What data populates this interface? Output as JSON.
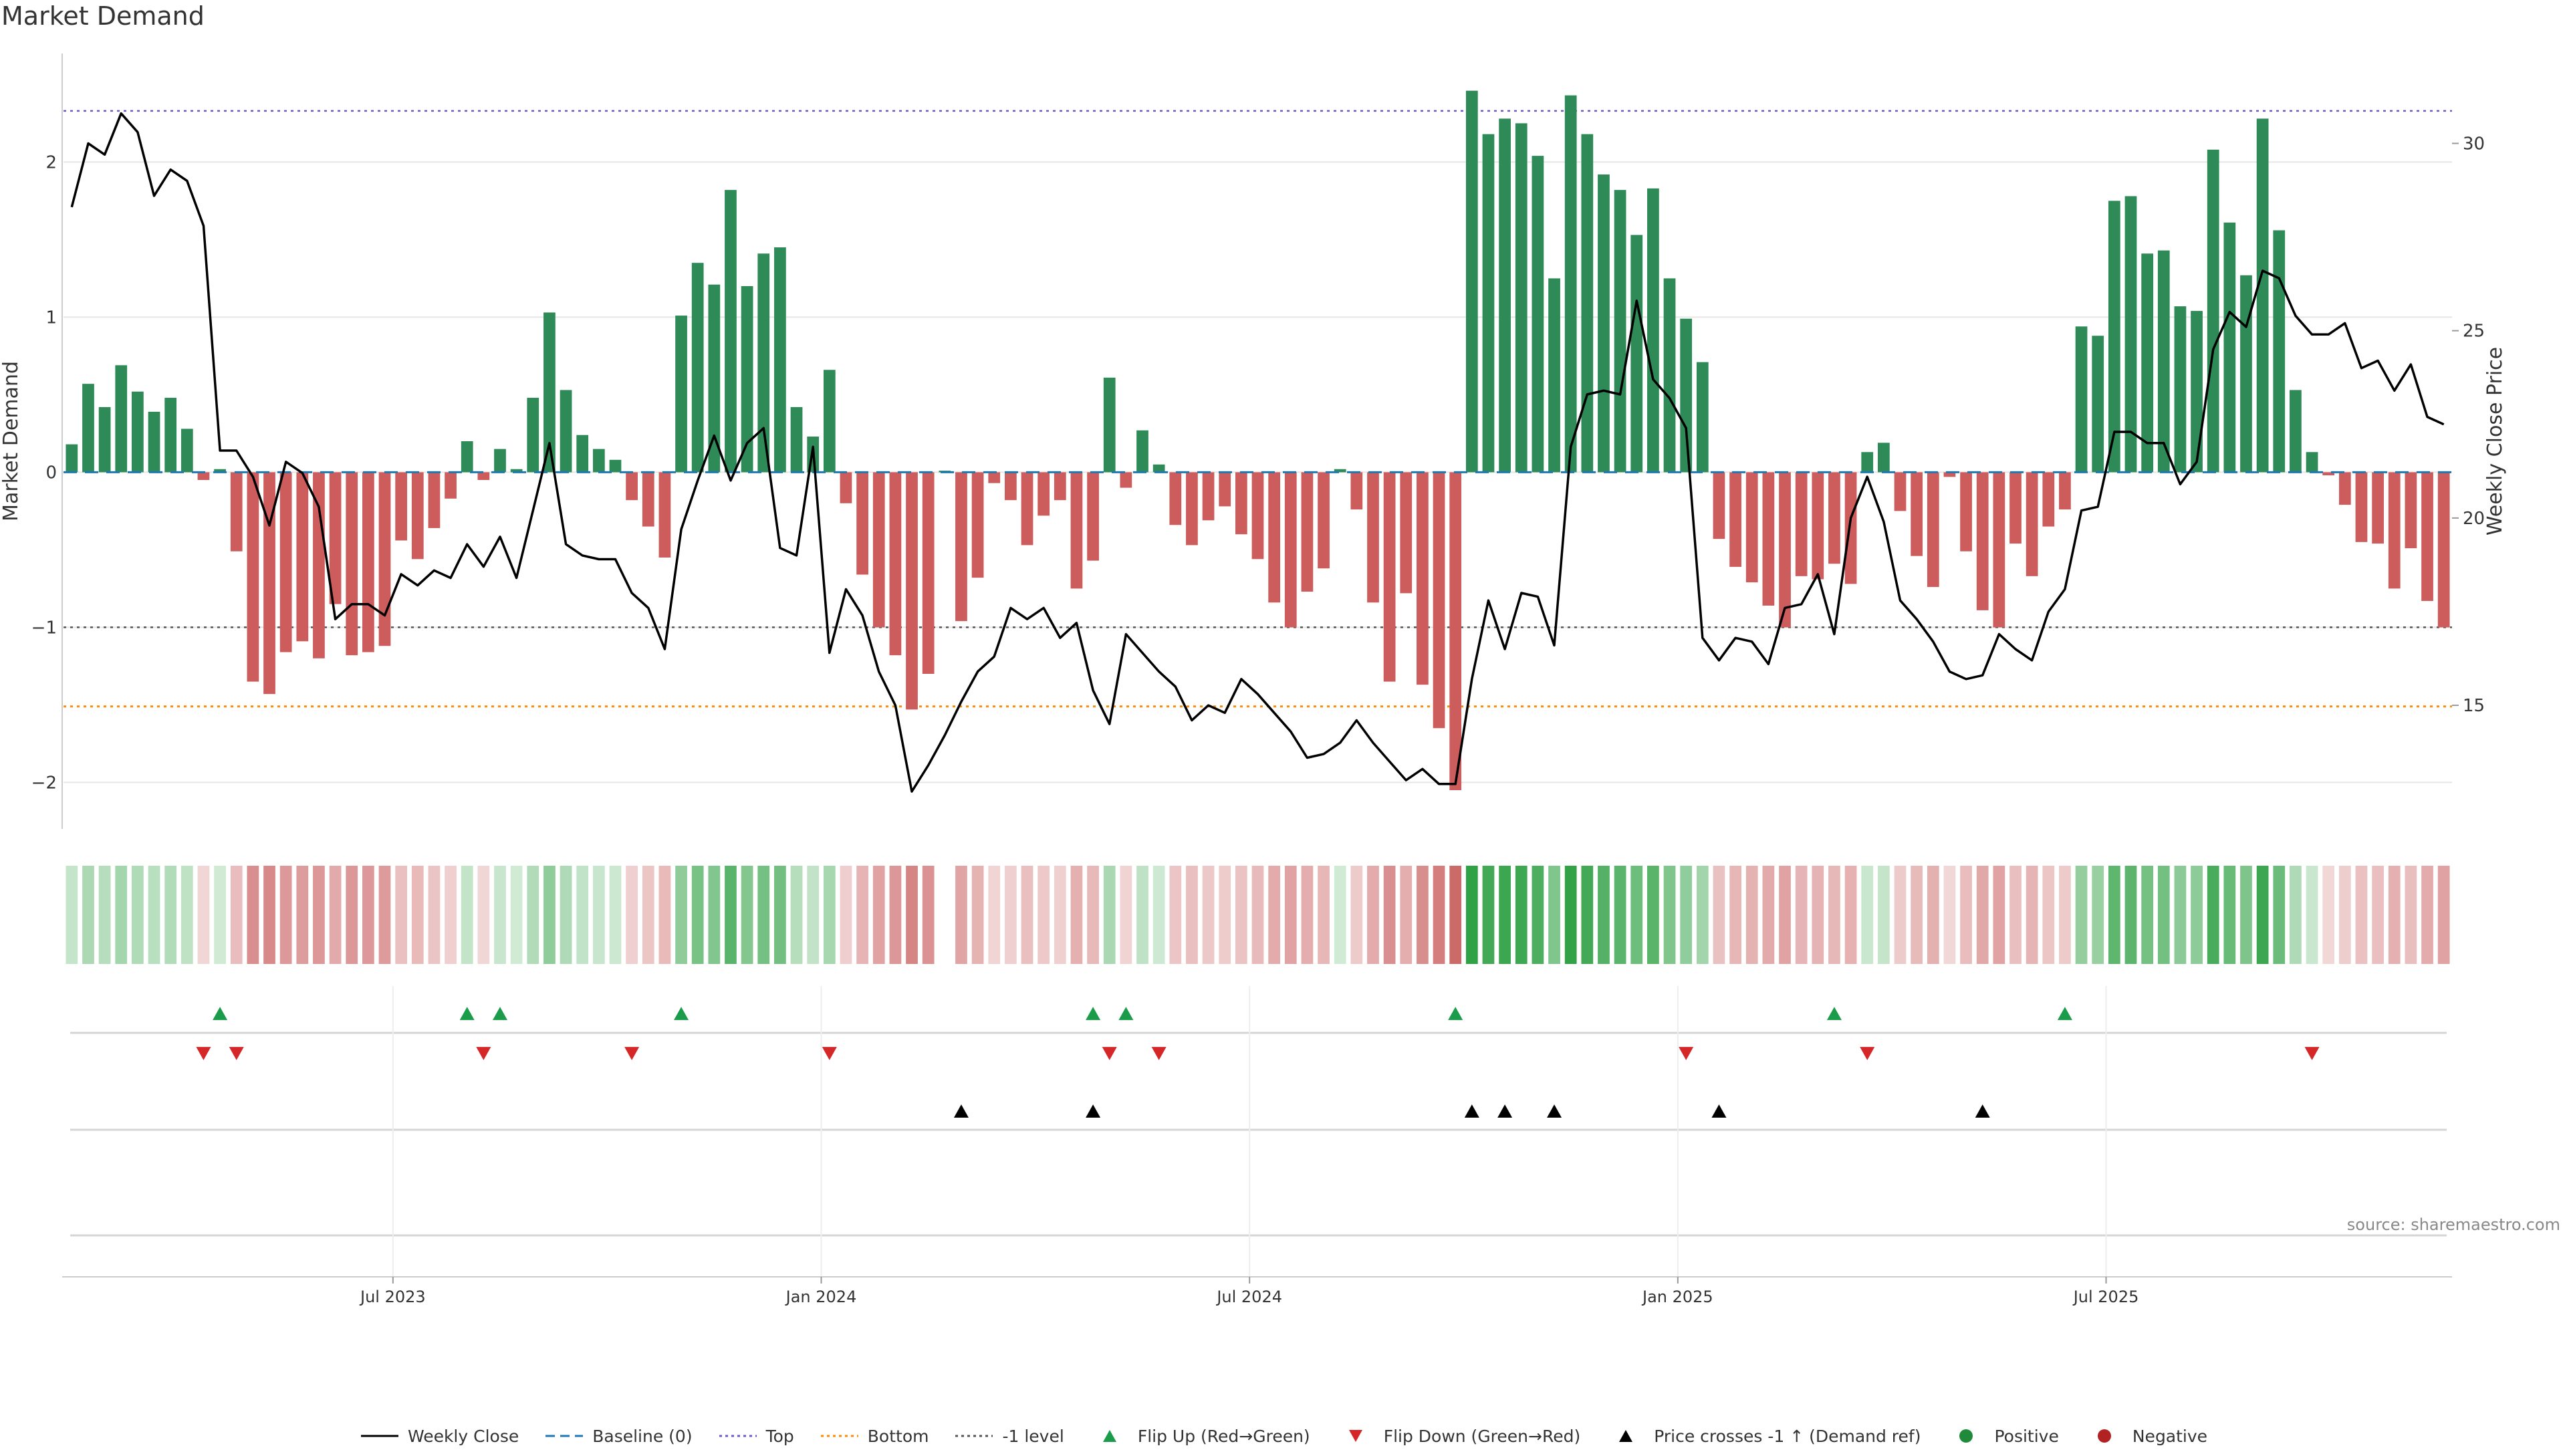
{
  "title": "Market Demand",
  "source": "source: sharemaestro.com",
  "colors": {
    "positive": "#2e8b57",
    "negative": "#cd5c5c",
    "price": "#000000",
    "baseline": "#1f77b4",
    "top": "#6a5acd",
    "bottom": "#ff8c00",
    "minus1": "#555555",
    "flip_up": "#1a9c4a",
    "flip_down": "#d62728",
    "cross": "#000000"
  },
  "legend": [
    {
      "key": "price",
      "label": "Weekly Close",
      "style": "solid"
    },
    {
      "key": "baseline",
      "label": "Baseline (0)",
      "style": "dashed"
    },
    {
      "key": "top",
      "label": "Top",
      "style": "dotted"
    },
    {
      "key": "bottom",
      "label": "Bottom",
      "style": "dotted"
    },
    {
      "key": "minus1",
      "label": "-1 level",
      "style": "dotted"
    },
    {
      "key": "flip_up",
      "label": "Flip Up (Red→Green)",
      "style": "tri-up"
    },
    {
      "key": "flip_down",
      "label": "Flip Down (Green→Red)",
      "style": "tri-down"
    },
    {
      "key": "cross",
      "label": "Price crosses -1 ↑ (Demand ref)",
      "style": "tri-up"
    },
    {
      "key": "positive",
      "label": "Positive",
      "style": "dot"
    },
    {
      "key": "negative",
      "label": "Negative",
      "style": "dot"
    }
  ],
  "chart_data": {
    "type": "bar",
    "title": "Market Demand",
    "ylabel": "Market Demand",
    "y2label": "Weekly Close Price",
    "ylim": [
      -2.3,
      2.7
    ],
    "y2lim": [
      11.7,
      32.4
    ],
    "yticks": [
      -2,
      -1,
      0,
      1,
      2
    ],
    "y2ticks": [
      15,
      20,
      25,
      30
    ],
    "x_tick_labels": [
      {
        "label": "Jul 2023",
        "index": 20
      },
      {
        "label": "Jan 2024",
        "index": 46
      },
      {
        "label": "Jul 2024",
        "index": 72
      },
      {
        "label": "Jan 2025",
        "index": 98
      },
      {
        "label": "Jul 2025",
        "index": 124
      }
    ],
    "reference_lines": {
      "top": 2.33,
      "bottom": -1.51,
      "minus1": -1.0,
      "baseline": 0
    },
    "demand": [
      0.18,
      0.57,
      0.42,
      0.69,
      0.52,
      0.39,
      0.48,
      0.28,
      -0.05,
      0.02,
      -0.51,
      -1.35,
      -1.43,
      -1.16,
      -1.09,
      -1.2,
      -0.85,
      -1.18,
      -1.16,
      -1.12,
      -0.44,
      -0.56,
      -0.36,
      -0.17,
      0.2,
      -0.05,
      0.15,
      0.02,
      0.48,
      1.03,
      0.53,
      0.24,
      0.15,
      0.08,
      -0.18,
      -0.35,
      -0.55,
      1.01,
      1.35,
      1.21,
      1.82,
      1.2,
      1.41,
      1.45,
      0.42,
      0.23,
      0.66,
      -0.2,
      -0.66,
      -1.0,
      -1.18,
      -1.53,
      -1.3,
      0.01,
      -0.96,
      -0.68,
      -0.07,
      -0.18,
      -0.47,
      -0.28,
      -0.18,
      -0.75,
      -0.57,
      0.61,
      -0.1,
      0.27,
      0.05,
      -0.34,
      -0.47,
      -0.31,
      -0.22,
      -0.4,
      -0.56,
      -0.84,
      -1.0,
      -0.77,
      -0.62,
      0.02,
      -0.24,
      -0.84,
      -1.35,
      -0.78,
      -1.37,
      -1.65,
      -2.05,
      2.46,
      2.18,
      2.28,
      2.25,
      2.04,
      1.25,
      2.43,
      2.18,
      1.92,
      1.82,
      1.53,
      1.83,
      1.25,
      0.99,
      0.71,
      -0.43,
      -0.61,
      -0.71,
      -0.86,
      -1.0,
      -0.67,
      -0.69,
      -0.59,
      -0.72,
      0.13,
      0.19,
      -0.25,
      -0.54,
      -0.74,
      -0.03,
      -0.51,
      -0.89,
      -1.0,
      -0.46,
      -0.67,
      -0.35,
      -0.24,
      0.94,
      0.88,
      1.75,
      1.78,
      1.41,
      1.43,
      1.07,
      1.04,
      2.08,
      1.61,
      1.27,
      2.28,
      1.56,
      0.53,
      0.13,
      -0.02,
      -0.21,
      -0.45,
      -0.46,
      -0.75,
      -0.49,
      -0.83,
      -1.0
    ],
    "weekly_close": [
      28.3,
      30.0,
      29.7,
      30.8,
      30.3,
      28.6,
      29.3,
      29.0,
      27.8,
      21.8,
      21.8,
      21.1,
      19.8,
      21.5,
      21.2,
      20.3,
      17.3,
      17.7,
      17.7,
      17.4,
      18.5,
      18.2,
      18.6,
      18.4,
      19.3,
      18.7,
      19.5,
      18.4,
      20.2,
      22.0,
      19.3,
      19.0,
      18.9,
      18.9,
      18.0,
      17.6,
      16.5,
      19.7,
      21.0,
      22.2,
      21.0,
      22.0,
      22.4,
      19.2,
      19.0,
      21.9,
      16.4,
      18.1,
      17.4,
      15.9,
      15.0,
      12.7,
      13.4,
      14.2,
      15.1,
      15.9,
      16.3,
      17.6,
      17.3,
      17.6,
      16.8,
      17.2,
      15.4,
      14.5,
      16.9,
      16.4,
      15.9,
      15.5,
      14.6,
      15.0,
      14.8,
      15.7,
      15.3,
      14.8,
      14.3,
      13.6,
      13.7,
      14.0,
      14.6,
      14.0,
      13.5,
      13.0,
      13.3,
      12.9,
      12.9,
      15.7,
      17.8,
      16.5,
      18.0,
      17.9,
      16.6,
      21.9,
      23.3,
      23.4,
      23.3,
      25.8,
      23.7,
      23.2,
      22.4,
      16.8,
      16.2,
      16.8,
      16.7,
      16.1,
      17.6,
      17.7,
      18.5,
      16.9,
      20.0,
      21.1,
      19.9,
      17.8,
      17.3,
      16.7,
      15.9,
      15.7,
      15.8,
      16.9,
      16.5,
      16.2,
      17.5,
      18.1,
      20.2,
      20.3,
      22.3,
      22.3,
      22.0,
      22.0,
      20.9,
      21.5,
      24.5,
      25.5,
      25.1,
      26.6,
      26.4,
      25.4,
      24.9,
      24.9,
      25.2,
      24.0,
      24.2,
      23.4,
      24.1,
      22.7,
      22.5
    ],
    "heat_strip": [
      0.18,
      0.57,
      0.42,
      0.69,
      0.52,
      0.39,
      0.48,
      0.28,
      -0.05,
      0.02,
      -0.51,
      -1.35,
      -1.43,
      -1.16,
      -1.09,
      -1.2,
      -0.85,
      -1.18,
      -1.16,
      -1.12,
      -0.44,
      -0.56,
      -0.36,
      -0.17,
      0.2,
      -0.05,
      0.15,
      0.02,
      0.48,
      1.03,
      0.53,
      0.24,
      0.15,
      0.08,
      -0.18,
      -0.35,
      -0.55,
      1.01,
      1.35,
      1.21,
      1.82,
      1.2,
      1.41,
      1.45,
      0.42,
      0.23,
      0.66,
      -0.2,
      -0.66,
      -1.0,
      -1.18,
      -1.53,
      -1.3,
      null,
      -0.96,
      -0.68,
      -0.07,
      -0.18,
      -0.47,
      -0.28,
      -0.18,
      -0.75,
      -0.57,
      0.61,
      -0.1,
      0.27,
      0.05,
      -0.34,
      -0.47,
      -0.31,
      -0.22,
      -0.4,
      -0.56,
      -0.84,
      -1.0,
      -0.77,
      -0.62,
      0.02,
      -0.24,
      -0.84,
      -1.35,
      -0.78,
      -1.37,
      -1.65,
      -2.05,
      2.46,
      2.18,
      2.28,
      2.25,
      2.04,
      1.25,
      2.43,
      2.18,
      1.92,
      1.82,
      1.53,
      1.83,
      1.25,
      0.99,
      0.71,
      -0.43,
      -0.61,
      -0.71,
      -0.86,
      -1.0,
      -0.67,
      -0.69,
      -0.59,
      -0.72,
      0.13,
      0.19,
      -0.25,
      -0.54,
      -0.74,
      -0.03,
      -0.51,
      -0.89,
      -1.0,
      -0.46,
      -0.67,
      -0.35,
      -0.24,
      0.94,
      0.88,
      1.75,
      1.78,
      1.41,
      1.43,
      1.07,
      1.04,
      2.08,
      1.61,
      1.27,
      2.28,
      1.56,
      0.53,
      0.13,
      -0.02,
      -0.21,
      -0.45,
      -0.46,
      -0.75,
      -0.49,
      -0.83,
      -1.0
    ],
    "flip_up_indices": [
      9,
      24,
      26,
      37,
      62,
      64,
      84,
      107,
      121
    ],
    "flip_down_indices": [
      8,
      10,
      25,
      34,
      46,
      63,
      66,
      98,
      109,
      136
    ],
    "price_cross_indices": [
      54,
      62,
      85,
      87,
      90,
      100,
      116
    ]
  }
}
